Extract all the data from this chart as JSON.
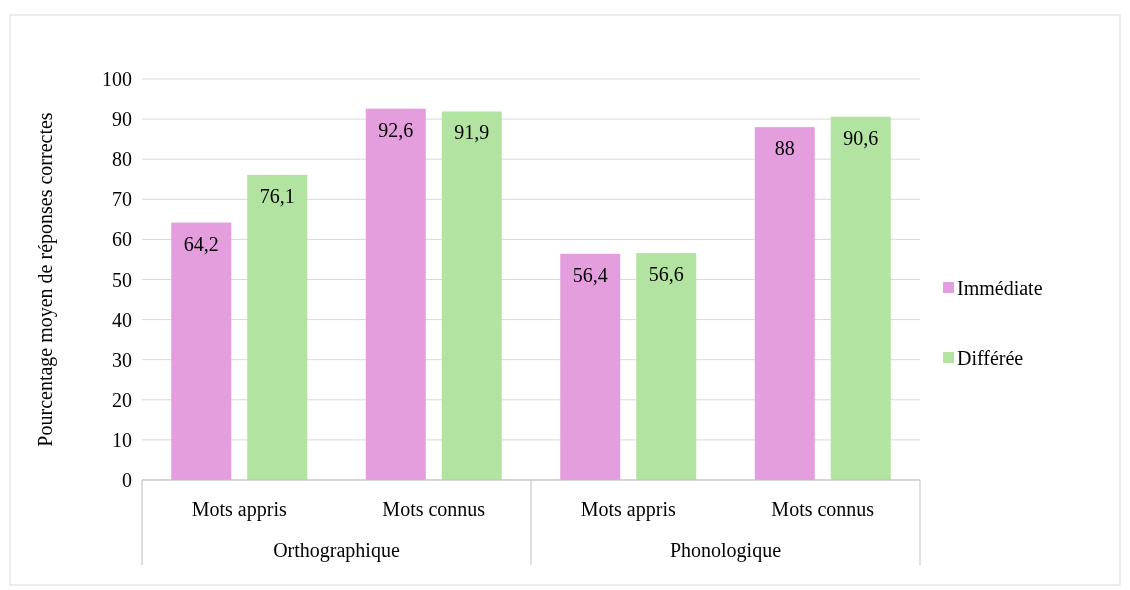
{
  "chart_data": {
    "type": "bar",
    "ylabel": "Pourcentage moyen de réponses correctes",
    "categories": [
      "Mots appris",
      "Mots connus",
      "Mots appris",
      "Mots connus"
    ],
    "series": [
      {
        "name": "Immédiate",
        "color": "#e49edd",
        "values": [
          64.2,
          92.6,
          56.4,
          88
        ],
        "value_labels": [
          "64,2",
          "92,6",
          "56,4",
          "88"
        ]
      },
      {
        "name": "Différée",
        "color": "#b3e3a0",
        "values": [
          76.1,
          91.9,
          56.6,
          90.6
        ],
        "value_labels": [
          "76,1",
          "91,9",
          "56,6",
          "90,6"
        ]
      }
    ],
    "annotations": [
      "Orthographique",
      "Phonologique"
    ],
    "ylim": [
      0,
      100
    ],
    "yticks": [
      0,
      10,
      20,
      30,
      40,
      50,
      60,
      70,
      80,
      90,
      100
    ],
    "grid": "y",
    "legend": "right"
  }
}
